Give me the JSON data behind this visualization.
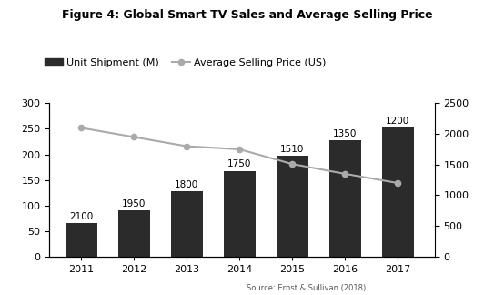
{
  "years": [
    2011,
    2012,
    2013,
    2014,
    2015,
    2016,
    2017
  ],
  "shipment": [
    65,
    90,
    128,
    168,
    197,
    228,
    252
  ],
  "avg_price": [
    2100,
    1950,
    1800,
    1750,
    1510,
    1350,
    1200
  ],
  "bar_color": "#2b2b2b",
  "line_color": "#aaaaaa",
  "line_marker": "o",
  "title": "Figure 4: Global Smart TV Sales and Average Selling Price",
  "legend_bar": "Unit Shipment (M)",
  "legend_line": "Average Selling Price (US)",
  "left_ylim": [
    0,
    300
  ],
  "right_ylim": [
    0,
    2500
  ],
  "left_yticks": [
    0,
    50,
    100,
    150,
    200,
    250,
    300
  ],
  "right_yticks": [
    0,
    500,
    1000,
    1500,
    2000,
    2500
  ],
  "source_text": "Source: Ernst & Sullivan (2018)",
  "background_color": "#ffffff",
  "title_fontsize": 9,
  "tick_fontsize": 8,
  "annot_fontsize": 7.5
}
